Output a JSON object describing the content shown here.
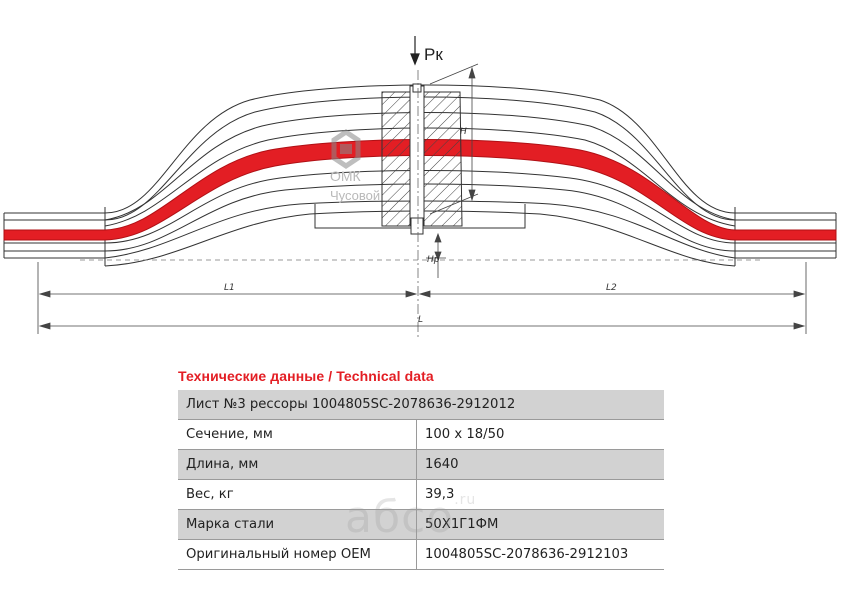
{
  "drawing": {
    "force_label": "Pк",
    "height_label": "H",
    "camber_label": "Hp",
    "dim_l1": "L1",
    "dim_l2": "L2",
    "dim_l": "L",
    "logo_line1": "ОМК",
    "logo_line2": "Чусовой",
    "highlight_color": "#e31e24"
  },
  "spec": {
    "title": "Технические данные / Technical data",
    "header": "Лист №3 рессоры 1004805SC-2078636-2912012",
    "rows": [
      {
        "label": "Сечение, мм",
        "value": "100 x 18/50"
      },
      {
        "label": "Длина, мм",
        "value": "1640"
      },
      {
        "label": "Вес, кг",
        "value": "39,3"
      },
      {
        "label": "Марка стали",
        "value": "50Х1Г1ФМ"
      },
      {
        "label": "Оригинальный номер OEM",
        "value": "1004805SC-2078636-2912103"
      }
    ]
  },
  "watermark": {
    "text": "абсо",
    "suffix": ".ru"
  }
}
